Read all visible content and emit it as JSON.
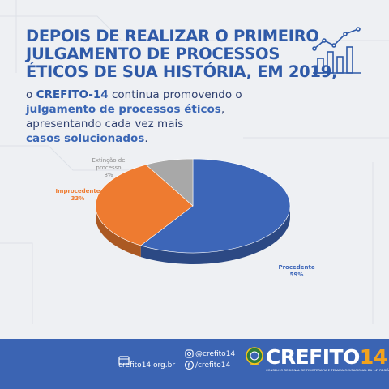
{
  "headline": {
    "line1": "DEPOIS DE REALIZAR O PRIMEIRO",
    "line2": "JULGAMENTO DE PROCESSOS",
    "line3": "ÉTICOS DE SUA HISTÓRIA, EM 2019,"
  },
  "subtitle": {
    "part1": "o ",
    "brand": "CREFITO-14",
    "part2": " continua promovendo o",
    "bold1": "julgamento de processos éticos",
    "part3": ",",
    "line3": "apresentando cada vez mais",
    "bold2": "casos solucionados",
    "end": "."
  },
  "chart_data": {
    "type": "pie",
    "style": "3d",
    "slices": [
      {
        "label": "Procedente",
        "percent_label": "59%",
        "value": 59,
        "color": "#3d66b8"
      },
      {
        "label": "Improcedente",
        "percent_label": "33%",
        "value": 33,
        "color": "#ee7b30"
      },
      {
        "label": "Extinção de processo",
        "label_line1": "Extinção de",
        "label_line2": "processo",
        "percent_label": "8%",
        "value": 8,
        "color": "#a8a8a8"
      }
    ]
  },
  "footer": {
    "website": "crefito14.org.br",
    "instagram": "@crefito14",
    "facebook": "/crefito14",
    "logo_main": "CREFITO",
    "logo_number": "14",
    "logo_subtitle": "CONSELHO REGIONAL DE FISIOTERAPIA E TERAPIA OCUPACIONAL DA 14ª REGIÃO"
  },
  "colors": {
    "brand_blue": "#2f5aa8",
    "footer_blue": "#3b64b3",
    "accent_orange": "#f2a21c"
  },
  "icons": [
    "bar-chart-trend-icon",
    "website-icon",
    "instagram-icon",
    "facebook-icon",
    "crest-icon"
  ]
}
